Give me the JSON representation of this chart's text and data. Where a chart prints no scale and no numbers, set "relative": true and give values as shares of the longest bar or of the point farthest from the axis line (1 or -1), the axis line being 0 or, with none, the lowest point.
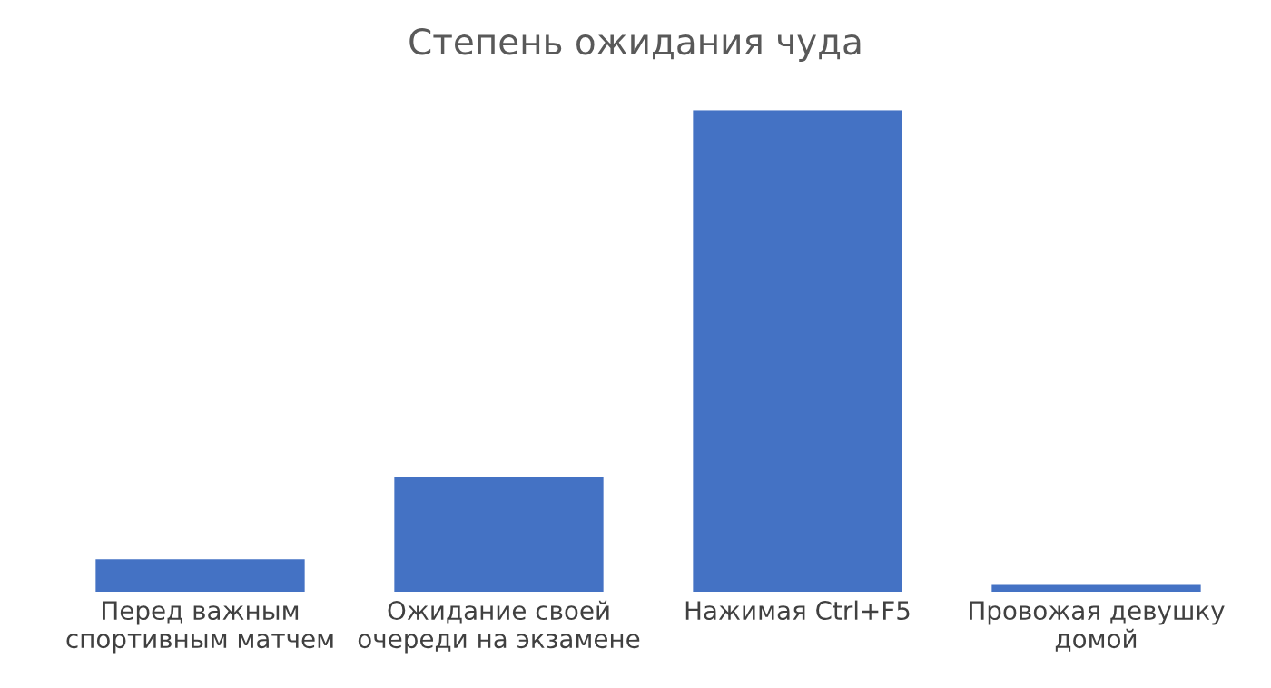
{
  "chart_data": {
    "type": "bar",
    "title": "Степень ожидания чуда",
    "categories": [
      "Перед важным\nспортивным матчем",
      "Ожидание своей\nочереди на экзамене",
      "Нажимая Ctrl+F5",
      "Провожая девушку\nдомой"
    ],
    "values": [
      0.067,
      0.238,
      1,
      0.016
    ],
    "color": "#4472c4",
    "relative": true,
    "grid": false,
    "legend": false
  }
}
